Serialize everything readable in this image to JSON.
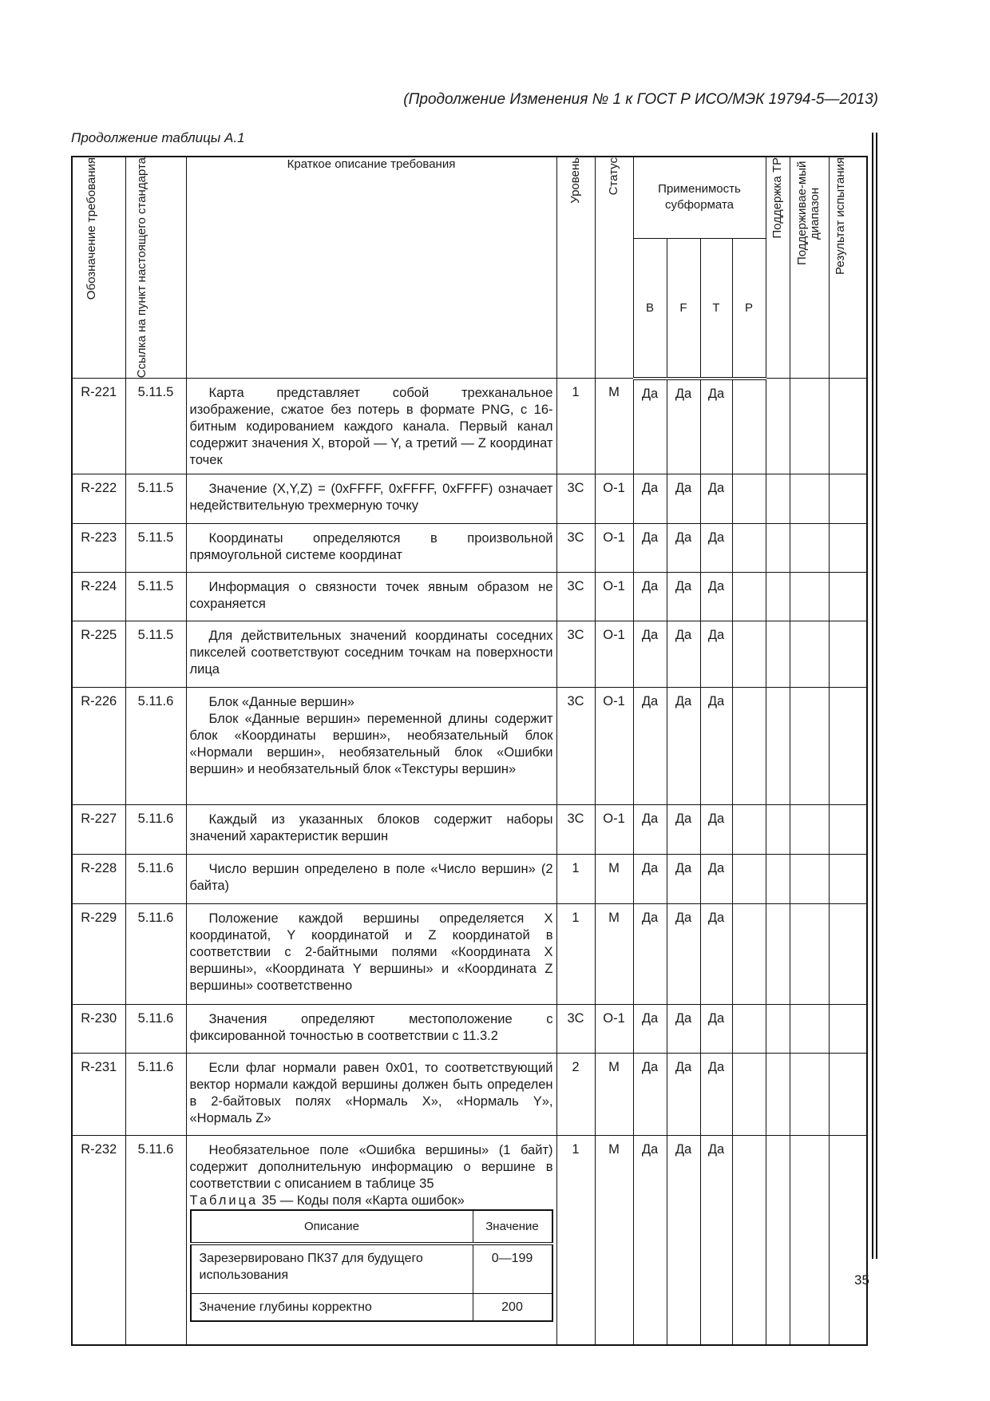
{
  "running_header": "(Продолжение Изменения № 1 к ГОСТ Р ИСО/МЭК 19794-5—2013)",
  "table_continuation": "Продолжение таблицы А.1",
  "page_number": "35",
  "columns": {
    "designation": "Обозначение требования",
    "reference": "Ссылка на пункт настоящего стандарта",
    "description": "Краткое описание требования",
    "level": "Уровень",
    "status": "Статус",
    "applicability": "Применимость субформата",
    "sub_b": "B",
    "sub_f": "F",
    "sub_t": "T",
    "sub_p": "P",
    "tp_support": "Поддержка ТР",
    "supported_range": "Поддерживае-мый диапазон",
    "test_result": "Результат испытания"
  },
  "rows": [
    {
      "id": "R-221",
      "ref": "5.11.5",
      "desc": [
        "Карта представляет собой трехканальное изображение, сжатое без потерь в формате PNG, с 16-битным кодированием каждого канала. Первый канал содержит значения X, второй — Y, а третий — Z координат точек"
      ],
      "level": "1",
      "status": "M",
      "b": "Да",
      "f": "Да",
      "t": "Да",
      "p": ""
    },
    {
      "id": "R-222",
      "ref": "5.11.5",
      "desc": [
        "Значение (X,Y,Z) = (0xFFFF, 0xFFFF, 0xFFFF) означает недействительную трехмерную точку"
      ],
      "level": "3С",
      "status": "О-1",
      "b": "Да",
      "f": "Да",
      "t": "Да",
      "p": ""
    },
    {
      "id": "R-223",
      "ref": "5.11.5",
      "desc": [
        "Координаты определяются в произвольной прямоугольной системе координат"
      ],
      "level": "3С",
      "status": "О-1",
      "b": "Да",
      "f": "Да",
      "t": "Да",
      "p": ""
    },
    {
      "id": "R-224",
      "ref": "5.11.5",
      "desc": [
        "Информация о связности точек явным образом не сохраняется"
      ],
      "level": "3С",
      "status": "О-1",
      "b": "Да",
      "f": "Да",
      "t": "Да",
      "p": ""
    },
    {
      "id": "R-225",
      "ref": "5.11.5",
      "desc": [
        "Для действительных значений координаты соседних пикселей соответствуют соседним точкам на поверхности лица"
      ],
      "level": "3С",
      "status": "О-1",
      "b": "Да",
      "f": "Да",
      "t": "Да",
      "p": ""
    },
    {
      "id": "R-226",
      "ref": "5.11.6",
      "desc": [
        "Блок «Данные вершин»",
        "Блок «Данные вершин» переменной длины содержит блок «Координаты вершин», необязательный блок «Нормали вершин», необязательный блок «Ошибки вершин» и необязательный блок «Текстуры вершин»"
      ],
      "level": "3С",
      "status": "О-1",
      "b": "Да",
      "f": "Да",
      "t": "Да",
      "p": ""
    },
    {
      "id": "R-227",
      "ref": "5.11.6",
      "desc": [
        "Каждый из указанных блоков содержит наборы значений характеристик вершин"
      ],
      "level": "3С",
      "status": "О-1",
      "b": "Да",
      "f": "Да",
      "t": "Да",
      "p": ""
    },
    {
      "id": "R-228",
      "ref": "5.11.6",
      "desc": [
        "Число вершин определено в поле «Число вершин» (2 байта)"
      ],
      "level": "1",
      "status": "M",
      "b": "Да",
      "f": "Да",
      "t": "Да",
      "p": ""
    },
    {
      "id": "R-229",
      "ref": "5.11.6",
      "desc": [
        "Положение каждой вершины определяется X координатой, Y координатой и Z координатой в соответствии с 2-байтными полями «Координата X вершины», «Координата Y вершины» и «Координата Z вершины» соответственно"
      ],
      "level": "1",
      "status": "M",
      "b": "Да",
      "f": "Да",
      "t": "Да",
      "p": ""
    },
    {
      "id": "R-230",
      "ref": "5.11.6",
      "desc": [
        "Значения определяют местоположение с фиксированной точностью в соответствии с 11.3.2"
      ],
      "level": "3С",
      "status": "О-1",
      "b": "Да",
      "f": "Да",
      "t": "Да",
      "p": ""
    },
    {
      "id": "R-231",
      "ref": "5.11.6",
      "desc": [
        "Если флаг нормали равен 0x01, то соответствующий вектор нормали каждой вершины должен быть определен в 2-байтовых полях «Нормаль X», «Нормаль Y», «Нормаль Z»"
      ],
      "level": "2",
      "status": "M",
      "b": "Да",
      "f": "Да",
      "t": "Да",
      "p": ""
    },
    {
      "id": "R-232",
      "ref": "5.11.6",
      "desc": [
        "Необязательное поле «Ошибка вершины» (1 байт) содержит дополнительную информацию о вершине в соответствии с описанием в таблице 35"
      ],
      "level": "1",
      "status": "M",
      "b": "Да",
      "f": "Да",
      "t": "Да",
      "p": "",
      "inner_table": {
        "caption_word": "Таблица",
        "caption_rest": "35 — Коды поля «Карта ошибок»",
        "headers": [
          "Описание",
          "Значение"
        ],
        "rows": [
          [
            "Зарезервировано ПК37 для будущего использования",
            "0—199"
          ],
          [
            "Значение глубины корректно",
            "200"
          ]
        ]
      }
    }
  ]
}
